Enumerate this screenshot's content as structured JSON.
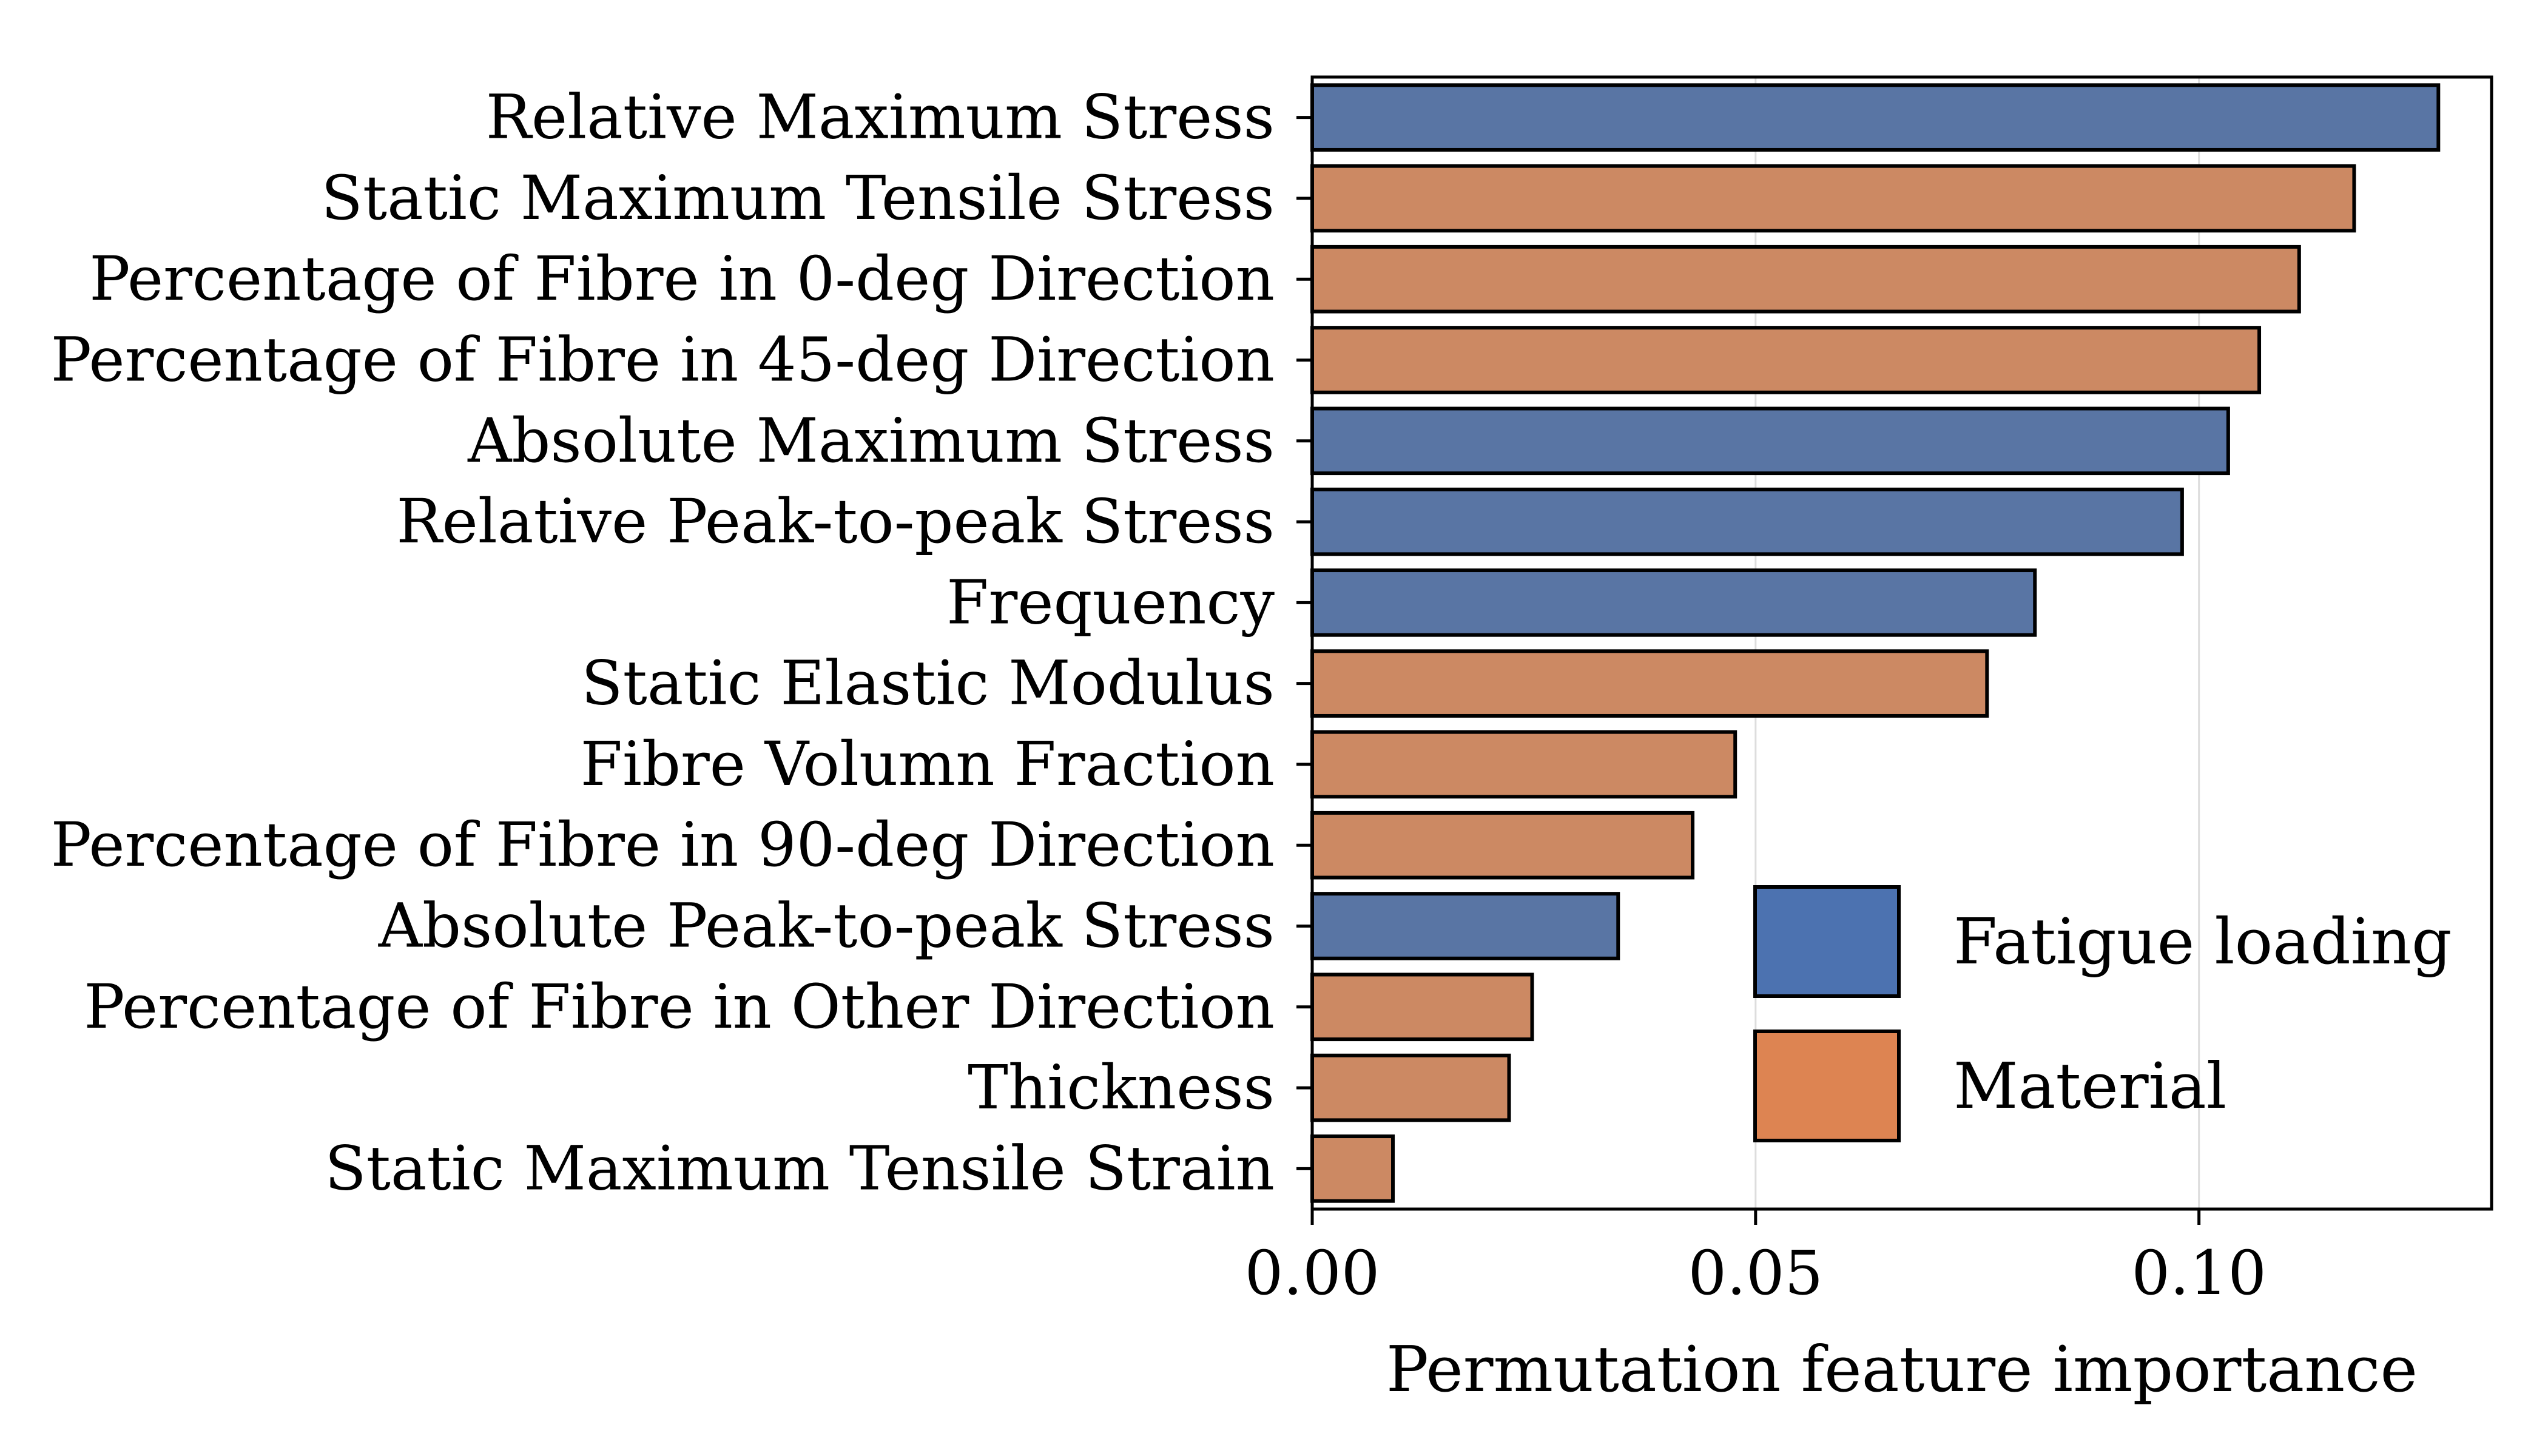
{
  "chart_data": {
    "type": "bar",
    "orientation": "horizontal",
    "title": "",
    "xlabel": "Permutation feature importance",
    "ylabel": "",
    "xlim": [
      0,
      0.133
    ],
    "xticks": [
      0.0,
      0.05,
      0.1
    ],
    "xtick_labels": [
      "0.00",
      "0.05",
      "0.10"
    ],
    "grid": "vertical",
    "legend_position": "bottom-right",
    "series": [
      {
        "name": "Fatigue loading",
        "color": "#5975a4",
        "legend_color": "#4c72b0"
      },
      {
        "name": "Material",
        "color": "#cc8963",
        "legend_color": "#dd8452"
      }
    ],
    "categories": [
      "Relative Maximum Stress",
      "Static Maximum Tensile Stress",
      "Percentage of Fibre in 0-deg Direction",
      "Percentage of Fibre in 45-deg Direction",
      "Absolute Maximum Stress",
      "Relative Peak-to-peak Stress",
      "Frequency",
      "Static Elastic Modulus",
      "Fibre Volumn Fraction",
      "Percentage of Fibre in 90-deg Direction",
      "Absolute Peak-to-peak Stress",
      "Percentage of Fibre in Other Direction",
      "Thickness",
      "Static Maximum Tensile Strain"
    ],
    "values": [
      0.127,
      0.1175,
      0.1113,
      0.1068,
      0.1033,
      0.0981,
      0.0815,
      0.0761,
      0.0477,
      0.0429,
      0.0345,
      0.0248,
      0.0222,
      0.0091
    ],
    "groups": [
      "Fatigue loading",
      "Material",
      "Material",
      "Material",
      "Fatigue loading",
      "Fatigue loading",
      "Fatigue loading",
      "Material",
      "Material",
      "Material",
      "Fatigue loading",
      "Material",
      "Material",
      "Material"
    ]
  }
}
